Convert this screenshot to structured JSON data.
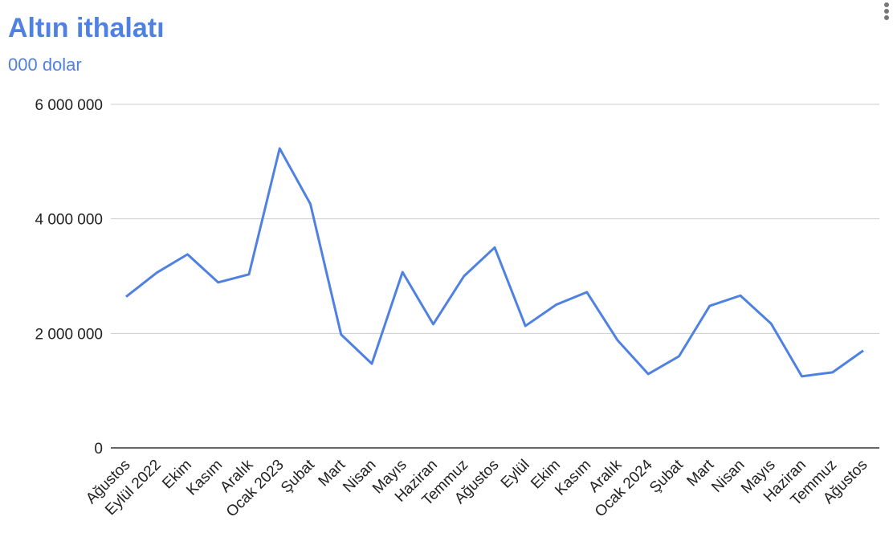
{
  "chart_data": {
    "type": "line",
    "title": "Altın ithalatı",
    "subtitle": "000 dolar",
    "categories": [
      "Ağustos",
      "Eylül 2022",
      "Ekim",
      "Kasım",
      "Aralık",
      "Ocak 2023",
      "Şubat",
      "Mart",
      "Nisan",
      "Mayıs",
      "Haziran",
      "Temmuz",
      "Ağustos",
      "Eylül",
      "Ekim",
      "Kasım",
      "Aralık",
      "Ocak 2024",
      "Şubat",
      "Mart",
      "Nisan",
      "Mayıs",
      "Haziran",
      "Temmuz",
      "Ağustos"
    ],
    "series": [
      {
        "name": "Altın ithalatı",
        "color": "#4f81e2",
        "values": [
          2640000,
          3060000,
          3380000,
          2890000,
          3030000,
          5230000,
          4260000,
          1980000,
          1470000,
          3070000,
          2160000,
          3000000,
          3500000,
          2130000,
          2500000,
          2720000,
          1880000,
          1290000,
          1600000,
          2480000,
          2660000,
          2170000,
          1250000,
          1320000,
          1700000
        ]
      }
    ],
    "ylim": [
      0,
      6000000
    ],
    "yticks": [
      {
        "value": 0,
        "label": "0"
      },
      {
        "value": 2000000,
        "label": "2 000 000"
      },
      {
        "value": 4000000,
        "label": "4 000 000"
      },
      {
        "value": 6000000,
        "label": "6 000 000"
      }
    ],
    "grid": true
  }
}
